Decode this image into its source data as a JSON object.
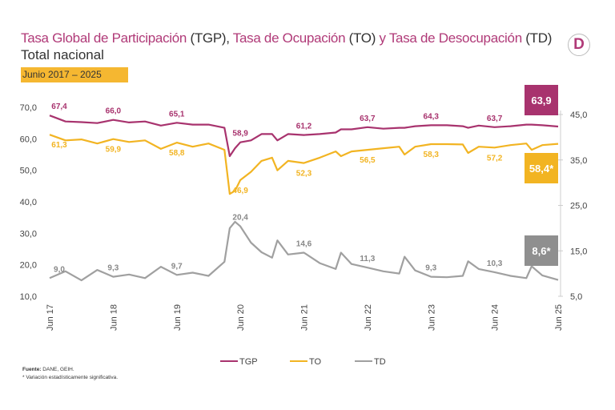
{
  "header": {
    "title_parts": [
      "Tasa Global de Participación",
      " (TGP), ",
      "Tasa de Ocupación",
      " (TO) ",
      "y Tasa de Desocupación",
      " (TD)"
    ],
    "subtitle": "Total nacional",
    "period": "Junio 2017 – 2025",
    "logo": "D"
  },
  "footer": {
    "source_label": "Fuente:",
    "source": " DANE, GEIH.",
    "note": "* Variación estadísticamente significativa."
  },
  "chart_data": {
    "type": "line",
    "x_ticks": [
      "Jun 17",
      "Jun 18",
      "Jun 19",
      "Jun 20",
      "Jun 21",
      "Jun 22",
      "Jun 23",
      "Jun 24",
      "Jun 25"
    ],
    "y_left": {
      "range": [
        10,
        70
      ],
      "ticks": [
        "10,0",
        "20,0",
        "30,0",
        "40,0",
        "50,0",
        "60,0",
        "70,0"
      ]
    },
    "y_right": {
      "range": [
        5,
        45
      ],
      "ticks": [
        "5,0",
        "15,0",
        "25,0",
        "35,0",
        "45,0"
      ]
    },
    "legend_position": "bottom",
    "colors": {
      "TGP": "#a8336e",
      "TO": "#f2b422",
      "TD": "#a0a0a0"
    },
    "x": [
      "2017-06",
      "2017-09",
      "2017-12",
      "2018-03",
      "2018-06",
      "2018-09",
      "2018-12",
      "2019-03",
      "2019-06",
      "2019-09",
      "2019-12",
      "2020-03",
      "2020-04",
      "2020-05",
      "2020-06",
      "2020-08",
      "2020-10",
      "2020-12",
      "2021-01",
      "2021-03",
      "2021-06",
      "2021-09",
      "2021-12",
      "2022-01",
      "2022-03",
      "2022-06",
      "2022-09",
      "2022-12",
      "2023-01",
      "2023-03",
      "2023-06",
      "2023-09",
      "2023-12",
      "2024-01",
      "2024-03",
      "2024-06",
      "2024-09",
      "2024-12",
      "2025-01",
      "2025-03",
      "2025-06"
    ],
    "series": [
      {
        "name": "TGP",
        "axis": "left",
        "values": [
          67.4,
          65.5,
          65.3,
          65.0,
          66.0,
          65.2,
          65.5,
          64.2,
          65.1,
          64.5,
          64.5,
          63.5,
          54.5,
          57.0,
          58.9,
          59.5,
          61.5,
          61.5,
          59.5,
          61.5,
          61.2,
          61.5,
          62.0,
          63.0,
          63.0,
          63.7,
          63.2,
          63.5,
          63.5,
          64.0,
          64.3,
          64.3,
          64.0,
          63.5,
          64.2,
          63.7,
          64.0,
          64.5,
          64.5,
          64.3,
          63.9
        ],
        "labels": [
          [
            "2017-06",
            "67,4"
          ],
          [
            "2018-06",
            "66,0"
          ],
          [
            "2019-06",
            "65,1"
          ],
          [
            "2020-06",
            "58,9"
          ],
          [
            "2021-06",
            "61,2"
          ],
          [
            "2022-06",
            "63,7"
          ],
          [
            "2023-06",
            "64,3"
          ],
          [
            "2024-06",
            "63,7"
          ]
        ],
        "final": "63,9"
      },
      {
        "name": "TO",
        "axis": "left",
        "values": [
          61.3,
          59.5,
          59.8,
          58.5,
          59.9,
          59.0,
          59.5,
          56.8,
          58.8,
          57.5,
          58.5,
          56.5,
          42.5,
          43.5,
          46.9,
          49.5,
          53.0,
          54.0,
          50.0,
          53.0,
          52.3,
          54.0,
          56.0,
          54.5,
          56.0,
          56.5,
          57.0,
          57.5,
          55.0,
          57.5,
          58.3,
          58.3,
          58.2,
          55.5,
          57.5,
          57.2,
          58.0,
          58.5,
          56.5,
          58.0,
          58.4
        ],
        "labels": [
          [
            "2017-06",
            "61,3"
          ],
          [
            "2018-06",
            "59,9"
          ],
          [
            "2019-06",
            "58,8"
          ],
          [
            "2020-06",
            "46,9"
          ],
          [
            "2021-06",
            "52,3"
          ],
          [
            "2022-06",
            "56,5"
          ],
          [
            "2023-06",
            "58,3"
          ],
          [
            "2024-06",
            "57,2"
          ]
        ],
        "final": "58,4*"
      },
      {
        "name": "TD",
        "axis": "right",
        "values": [
          9.0,
          10.5,
          8.5,
          10.8,
          9.3,
          9.8,
          9.0,
          11.5,
          9.7,
          10.2,
          9.5,
          12.6,
          20.0,
          21.4,
          20.4,
          16.8,
          14.7,
          13.5,
          17.3,
          14.2,
          14.6,
          12.3,
          11.0,
          14.6,
          12.1,
          11.3,
          10.5,
          10.0,
          13.7,
          10.7,
          9.3,
          9.2,
          9.5,
          12.7,
          11.0,
          10.3,
          9.5,
          9.0,
          11.6,
          9.6,
          8.6
        ],
        "labels": [
          [
            "2017-06",
            "9,0"
          ],
          [
            "2018-06",
            "9,3"
          ],
          [
            "2019-06",
            "9,7"
          ],
          [
            "2020-06",
            "20,4"
          ],
          [
            "2021-06",
            "14,6"
          ],
          [
            "2022-06",
            "11,3"
          ],
          [
            "2023-06",
            "9,3"
          ],
          [
            "2024-06",
            "10,3"
          ]
        ],
        "final": "8,6*"
      }
    ]
  }
}
